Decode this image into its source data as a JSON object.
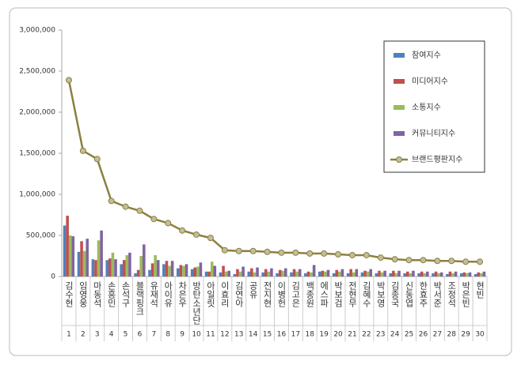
{
  "chart_data": {
    "type": "bar",
    "categories": [
      "김수현",
      "임영웅",
      "마동석",
      "손흥민",
      "손석구",
      "블랙핑크",
      "유재석",
      "아이유",
      "차은우",
      "방탄소년단",
      "아일릿",
      "이효리",
      "김연아",
      "공유",
      "전지현",
      "이병헌",
      "김고은",
      "백종원",
      "에스파",
      "박보검",
      "전현무",
      "김혜수",
      "박보영",
      "김종국",
      "신동엽",
      "한효주",
      "박서준",
      "조정석",
      "박은빈",
      "현빈"
    ],
    "ranks": [
      1,
      2,
      3,
      4,
      5,
      6,
      7,
      8,
      9,
      10,
      11,
      12,
      13,
      14,
      15,
      16,
      17,
      18,
      19,
      20,
      21,
      22,
      23,
      24,
      25,
      26,
      27,
      28,
      29,
      30
    ],
    "series": [
      {
        "name": "참여지수",
        "color": "#4f81bd",
        "type": "bar",
        "values": [
          620000,
          300000,
          210000,
          200000,
          150000,
          40000,
          80000,
          150000,
          100000,
          90000,
          60000,
          50000,
          30000,
          60000,
          50000,
          40000,
          50000,
          40000,
          60000,
          40000,
          40000,
          50000,
          40000,
          40000,
          40000,
          40000,
          40000,
          30000,
          40000,
          30000
        ]
      },
      {
        "name": "미디어지수",
        "color": "#c0504d",
        "type": "bar",
        "values": [
          740000,
          430000,
          200000,
          220000,
          200000,
          80000,
          160000,
          190000,
          140000,
          110000,
          60000,
          130000,
          90000,
          100000,
          90000,
          80000,
          90000,
          60000,
          70000,
          80000,
          90000,
          70000,
          70000,
          70000,
          60000,
          60000,
          60000,
          60000,
          50000,
          50000
        ]
      },
      {
        "name": "소통지수",
        "color": "#9bbb59",
        "type": "bar",
        "values": [
          500000,
          310000,
          440000,
          290000,
          260000,
          250000,
          260000,
          130000,
          130000,
          120000,
          180000,
          60000,
          60000,
          50000,
          60000,
          70000,
          60000,
          50000,
          60000,
          60000,
          50000,
          60000,
          50000,
          40000,
          40000,
          40000,
          40000,
          40000,
          40000,
          40000
        ]
      },
      {
        "name": "커뮤니티지수",
        "color": "#8064a2",
        "type": "bar",
        "values": [
          490000,
          460000,
          560000,
          210000,
          290000,
          390000,
          200000,
          190000,
          150000,
          170000,
          130000,
          70000,
          120000,
          110000,
          100000,
          100000,
          90000,
          140000,
          80000,
          90000,
          90000,
          90000,
          70000,
          70000,
          70000,
          60000,
          50000,
          60000,
          50000,
          60000
        ]
      },
      {
        "name": "브랜드평판지수",
        "color": "#8a8040",
        "marker_color": "#c4bd97",
        "type": "line",
        "values": [
          2390000,
          1530000,
          1430000,
          920000,
          850000,
          800000,
          700000,
          650000,
          560000,
          510000,
          470000,
          320000,
          310000,
          310000,
          300000,
          290000,
          290000,
          280000,
          280000,
          270000,
          260000,
          260000,
          230000,
          210000,
          200000,
          200000,
          190000,
          190000,
          180000,
          180000
        ]
      }
    ],
    "ylim": [
      0,
      3000000
    ],
    "yticks": [
      0,
      {
        "value": 500000,
        "label": "500,000"
      },
      {
        "value": 1000000,
        "label": "1,000,000"
      },
      {
        "value": 1500000,
        "label": "1,500,000"
      },
      {
        "value": 2000000,
        "label": "2,000,000"
      },
      {
        "value": 2500000,
        "label": "2,500,000"
      },
      {
        "value": 3000000,
        "label": "3,000,000"
      }
    ],
    "grid": false,
    "legend": "upper-right"
  }
}
